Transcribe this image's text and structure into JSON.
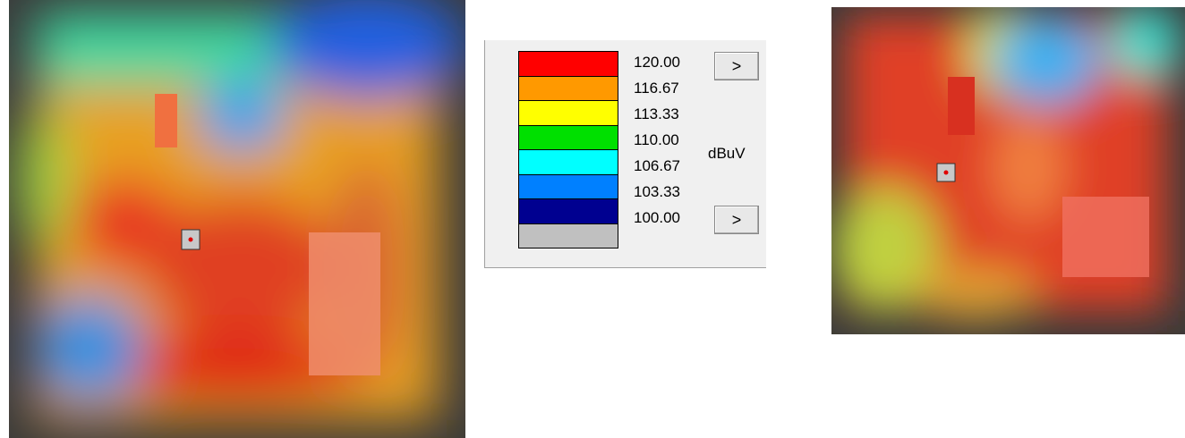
{
  "legend": {
    "levels": [
      {
        "label": "120.00",
        "color": "#ff0000"
      },
      {
        "label": "116.67",
        "color": "#ff9900"
      },
      {
        "label": "113.33",
        "color": "#ffff00"
      },
      {
        "label": "110.00",
        "color": "#00e000"
      },
      {
        "label": "106.67",
        "color": "#00ffff"
      },
      {
        "label": "103.33",
        "color": "#0080ff"
      },
      {
        "label": "100.00",
        "color": "#000090"
      }
    ],
    "below_color": "#c0c0c0",
    "unit": "dBuV",
    "buttons": [
      ">",
      ">"
    ]
  }
}
